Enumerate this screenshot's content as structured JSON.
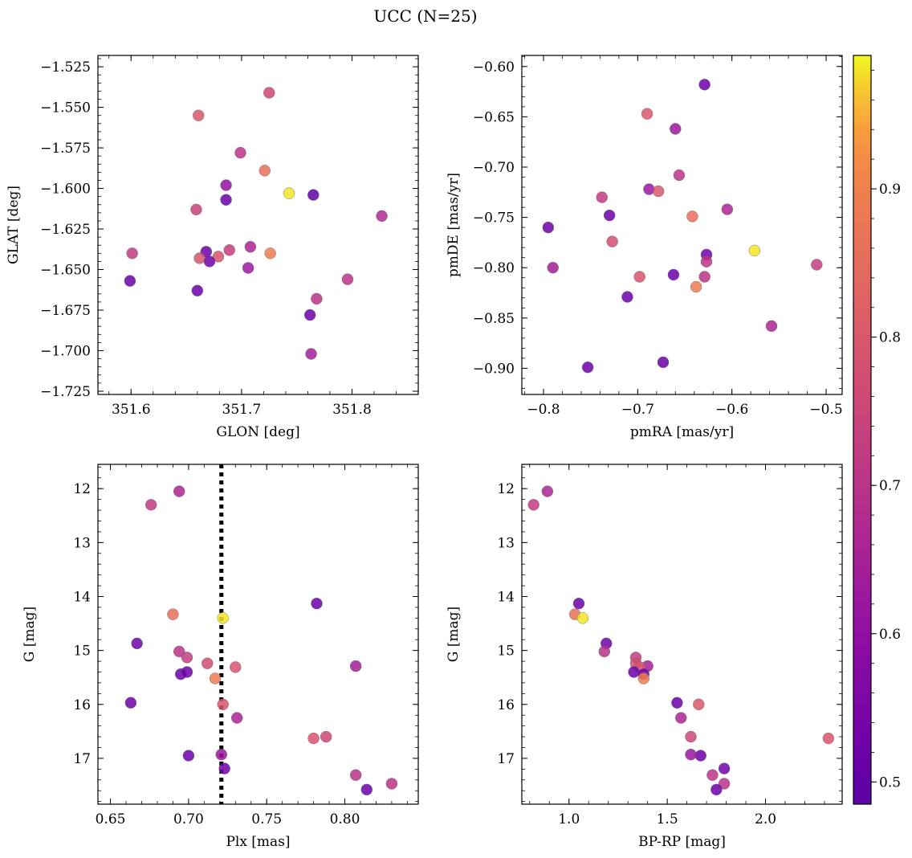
{
  "title": "UCC (N=25)",
  "colorbar": {
    "range": [
      0.485,
      0.99
    ],
    "ticks": [
      0.5,
      0.6,
      0.7,
      0.8,
      0.9
    ],
    "tick_labels": [
      "0.5",
      "0.6",
      "0.7",
      "0.8",
      "0.9"
    ],
    "colormap": "plasma"
  },
  "chart_data": [
    {
      "type": "scatter",
      "name": "glon-glat",
      "xlabel": "GLON [deg]",
      "ylabel": "GLAT [deg]",
      "xlim": [
        351.57,
        351.86
      ],
      "ylim": [
        -1.727,
        -1.518
      ],
      "y_inverted": false,
      "xticks": [
        351.6,
        351.7,
        351.8
      ],
      "xtick_labels": [
        "351.6",
        "351.7",
        "351.8"
      ],
      "yticks": [
        -1.525,
        -1.55,
        -1.575,
        -1.6,
        -1.625,
        -1.65,
        -1.675,
        -1.7,
        -1.725
      ],
      "ytick_labels": [
        "−1.525",
        "−1.550",
        "−1.575",
        "−1.600",
        "−1.625",
        "−1.650",
        "−1.675",
        "−1.700",
        "−1.725"
      ],
      "x": [
        351.725,
        351.661,
        351.699,
        351.721,
        351.743,
        351.686,
        351.765,
        351.686,
        351.659,
        351.827,
        351.601,
        351.668,
        351.662,
        351.679,
        351.689,
        351.708,
        351.726,
        351.671,
        351.706,
        351.599,
        351.796,
        351.66,
        351.768,
        351.762,
        351.763
      ],
      "y": [
        -1.541,
        -1.555,
        -1.578,
        -1.589,
        -1.603,
        -1.598,
        -1.604,
        -1.607,
        -1.613,
        -1.617,
        -1.64,
        -1.639,
        -1.643,
        -1.642,
        -1.638,
        -1.636,
        -1.64,
        -1.645,
        -1.649,
        -1.657,
        -1.656,
        -1.663,
        -1.668,
        -1.678,
        -1.702
      ],
      "c": [
        0.75,
        0.8,
        0.7,
        0.86,
        0.98,
        0.6,
        0.5,
        0.52,
        0.74,
        0.67,
        0.72,
        0.52,
        0.79,
        0.79,
        0.73,
        0.66,
        0.89,
        0.53,
        0.62,
        0.52,
        0.7,
        0.52,
        0.7,
        0.52,
        0.64
      ]
    },
    {
      "type": "scatter",
      "name": "pmra-pmde",
      "xlabel": "pmRA [mas/yr]",
      "ylabel": "pmDE [mas/yr]",
      "xlim": [
        -0.823,
        -0.483
      ],
      "ylim": [
        -0.926,
        -0.589
      ],
      "y_inverted": false,
      "xticks": [
        -0.8,
        -0.7,
        -0.6,
        -0.5
      ],
      "xtick_labels": [
        "−0.8",
        "−0.7",
        "−0.6",
        "−0.5"
      ],
      "yticks": [
        -0.6,
        -0.65,
        -0.7,
        -0.75,
        -0.8,
        -0.85,
        -0.9
      ],
      "ytick_labels": [
        "−0.60",
        "−0.65",
        "−0.70",
        "−0.75",
        "−0.80",
        "−0.85",
        "−0.90"
      ],
      "x": [
        -0.629,
        -0.69,
        -0.66,
        -0.656,
        -0.688,
        -0.678,
        -0.738,
        -0.73,
        -0.642,
        -0.605,
        -0.795,
        -0.727,
        -0.576,
        -0.627,
        -0.627,
        -0.629,
        -0.79,
        -0.698,
        -0.662,
        -0.638,
        -0.51,
        -0.711,
        -0.558,
        -0.753,
        -0.673
      ],
      "y": [
        -0.618,
        -0.647,
        -0.662,
        -0.708,
        -0.722,
        -0.724,
        -0.73,
        -0.748,
        -0.749,
        -0.742,
        -0.76,
        -0.774,
        -0.783,
        -0.787,
        -0.794,
        -0.809,
        -0.8,
        -0.809,
        -0.807,
        -0.819,
        -0.797,
        -0.829,
        -0.858,
        -0.899,
        -0.894
      ],
      "c": [
        0.52,
        0.8,
        0.62,
        0.7,
        0.62,
        0.8,
        0.72,
        0.52,
        0.86,
        0.66,
        0.52,
        0.77,
        0.98,
        0.53,
        0.7,
        0.7,
        0.64,
        0.79,
        0.52,
        0.89,
        0.73,
        0.52,
        0.66,
        0.52,
        0.52
      ]
    },
    {
      "type": "scatter",
      "name": "plx-g",
      "xlabel": "Plx [mas]",
      "ylabel": "G [mag]",
      "xlim": [
        0.642,
        0.847
      ],
      "ylim": [
        17.85,
        11.55
      ],
      "y_inverted": true,
      "xticks": [
        0.65,
        0.7,
        0.75,
        0.8
      ],
      "xtick_labels": [
        "0.65",
        "0.70",
        "0.75",
        "0.80"
      ],
      "yticks": [
        12,
        13,
        14,
        15,
        16,
        17
      ],
      "ytick_labels": [
        "12",
        "13",
        "14",
        "15",
        "16",
        "17"
      ],
      "vline": 0.721,
      "x": [
        0.694,
        0.676,
        0.782,
        0.69,
        0.722,
        0.667,
        0.694,
        0.699,
        0.807,
        0.712,
        0.73,
        0.695,
        0.699,
        0.717,
        0.663,
        0.722,
        0.731,
        0.788,
        0.78,
        0.7,
        0.721,
        0.723,
        0.807,
        0.83,
        0.814
      ],
      "y": [
        12.05,
        12.3,
        14.13,
        14.33,
        14.4,
        14.87,
        15.02,
        15.13,
        15.29,
        15.24,
        15.31,
        15.44,
        15.4,
        15.52,
        15.97,
        16.0,
        16.25,
        16.6,
        16.63,
        16.95,
        16.93,
        17.19,
        17.31,
        17.47,
        17.58
      ],
      "c": [
        0.66,
        0.72,
        0.52,
        0.86,
        0.98,
        0.53,
        0.7,
        0.73,
        0.64,
        0.77,
        0.79,
        0.52,
        0.52,
        0.89,
        0.52,
        0.8,
        0.66,
        0.75,
        0.79,
        0.52,
        0.62,
        0.53,
        0.7,
        0.7,
        0.52
      ]
    },
    {
      "type": "scatter",
      "name": "bprp-g",
      "xlabel": "BP-RP [mag]",
      "ylabel": "G [mag]",
      "xlim": [
        0.76,
        2.39
      ],
      "ylim": [
        17.85,
        11.55
      ],
      "y_inverted": true,
      "xticks": [
        1.0,
        1.5,
        2.0
      ],
      "xtick_labels": [
        "1.0",
        "1.5",
        "2.0"
      ],
      "yticks": [
        12,
        13,
        14,
        15,
        16,
        17
      ],
      "ytick_labels": [
        "12",
        "13",
        "14",
        "15",
        "16",
        "17"
      ],
      "x": [
        0.89,
        0.82,
        1.05,
        1.03,
        1.07,
        1.19,
        1.18,
        1.34,
        1.4,
        1.34,
        1.36,
        1.33,
        1.38,
        1.38,
        1.55,
        1.66,
        1.57,
        1.62,
        2.32,
        1.67,
        1.62,
        1.79,
        1.73,
        1.79,
        1.75
      ],
      "y": [
        12.05,
        12.3,
        14.13,
        14.33,
        14.4,
        14.87,
        15.02,
        15.13,
        15.29,
        15.24,
        15.31,
        15.4,
        15.44,
        15.52,
        15.97,
        16.0,
        16.25,
        16.6,
        16.63,
        16.95,
        16.93,
        17.19,
        17.31,
        17.47,
        17.58
      ],
      "c": [
        0.66,
        0.72,
        0.52,
        0.86,
        0.98,
        0.53,
        0.7,
        0.73,
        0.64,
        0.77,
        0.79,
        0.52,
        0.52,
        0.89,
        0.52,
        0.8,
        0.66,
        0.75,
        0.79,
        0.52,
        0.62,
        0.53,
        0.7,
        0.7,
        0.52
      ]
    }
  ]
}
